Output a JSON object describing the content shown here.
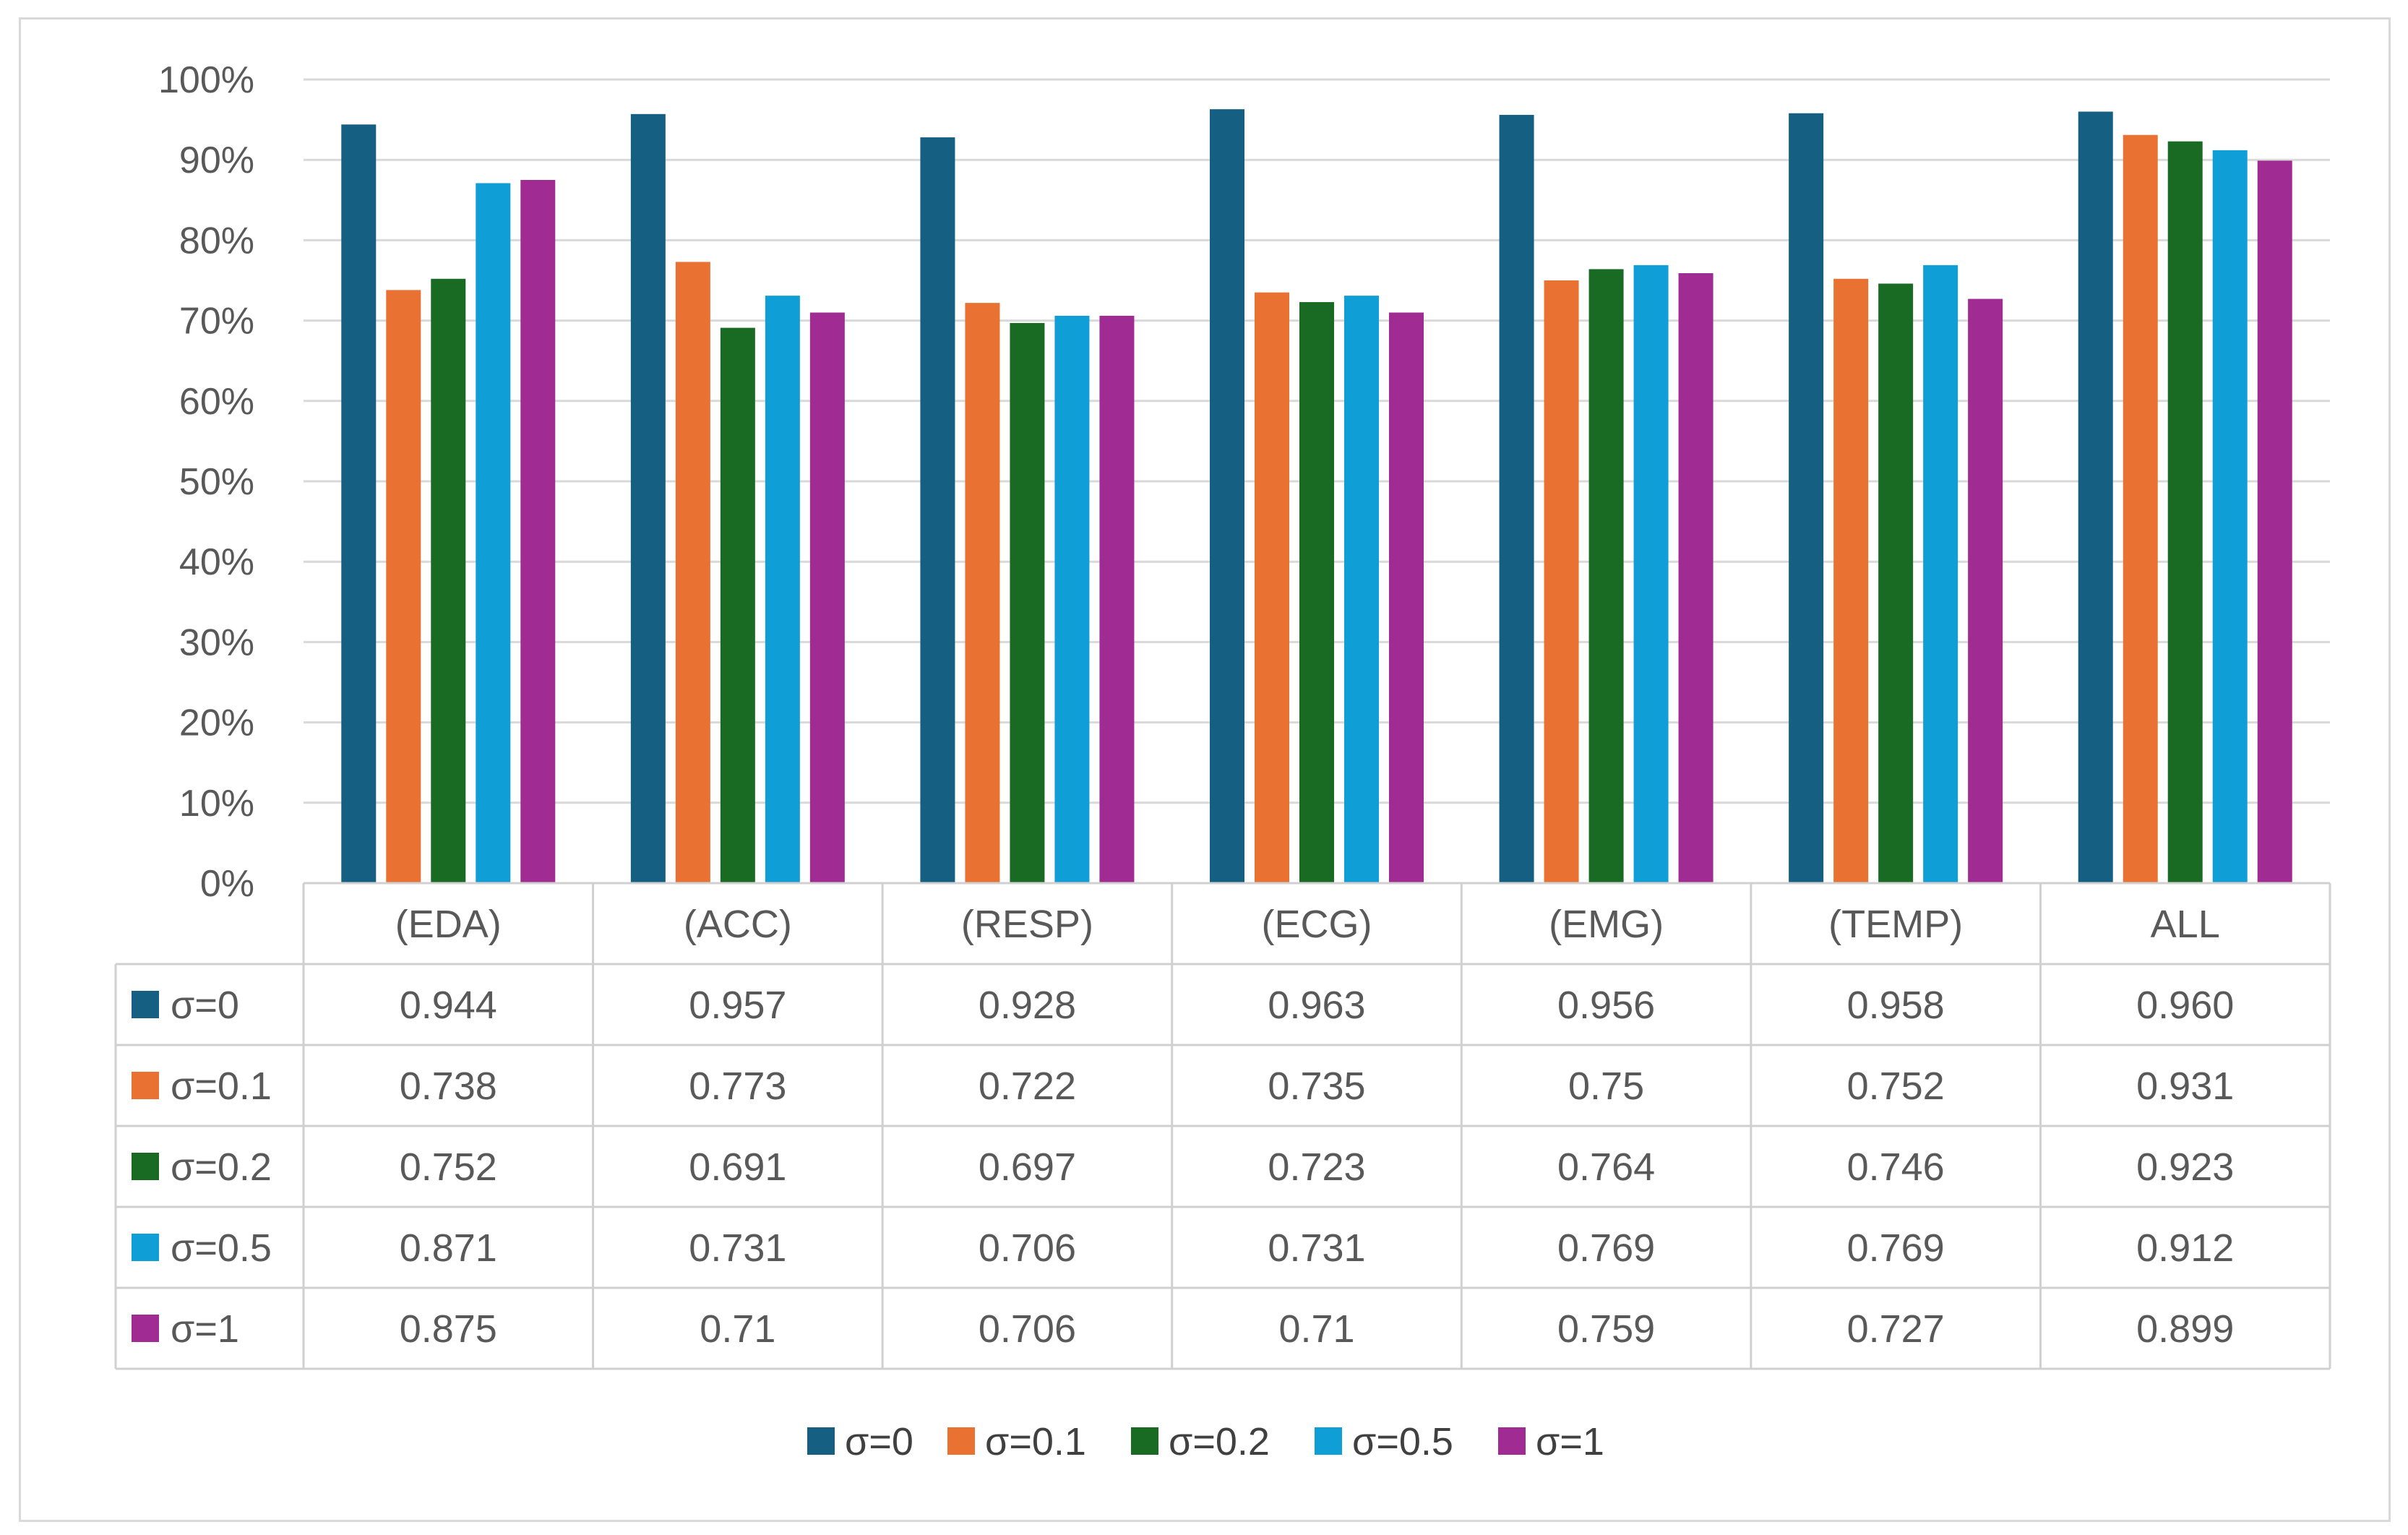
{
  "chart_data": {
    "type": "bar",
    "title": "",
    "xlabel": "",
    "ylabel": "",
    "ylim": [
      0,
      1
    ],
    "y_ticks": [
      "0%",
      "10%",
      "20%",
      "30%",
      "40%",
      "50%",
      "60%",
      "70%",
      "80%",
      "90%",
      "100%"
    ],
    "grid": true,
    "legend_position": "bottom",
    "categories": [
      "(EDA)",
      "(ACC)",
      "(RESP)",
      "(ECG)",
      "(EMG)",
      "(TEMP)",
      "ALL"
    ],
    "series": [
      {
        "name": "σ=0",
        "color": "#156082",
        "values": [
          0.944,
          0.957,
          0.928,
          0.963,
          0.956,
          0.958,
          0.96
        ],
        "labels": [
          "0.944",
          "0.957",
          "0.928",
          "0.963",
          "0.956",
          "0.958",
          "0.960"
        ]
      },
      {
        "name": "σ=0.1",
        "color": "#E97132",
        "values": [
          0.738,
          0.773,
          0.722,
          0.735,
          0.75,
          0.752,
          0.931
        ],
        "labels": [
          "0.738",
          "0.773",
          "0.722",
          "0.735",
          "0.75",
          "0.752",
          "0.931"
        ]
      },
      {
        "name": "σ=0.2",
        "color": "#196B24",
        "values": [
          0.752,
          0.691,
          0.697,
          0.723,
          0.764,
          0.746,
          0.923
        ],
        "labels": [
          "0.752",
          "0.691",
          "0.697",
          "0.723",
          "0.764",
          "0.746",
          "0.923"
        ]
      },
      {
        "name": "σ=0.5",
        "color": "#0F9ED5",
        "values": [
          0.871,
          0.731,
          0.706,
          0.731,
          0.769,
          0.769,
          0.912
        ],
        "labels": [
          "0.871",
          "0.731",
          "0.706",
          "0.731",
          "0.769",
          "0.769",
          "0.912"
        ]
      },
      {
        "name": "σ=1",
        "color": "#A02B93",
        "values": [
          0.875,
          0.71,
          0.706,
          0.71,
          0.759,
          0.727,
          0.899
        ],
        "labels": [
          "0.875",
          "0.71",
          "0.706",
          "0.71",
          "0.759",
          "0.727",
          "0.899"
        ]
      }
    ]
  }
}
